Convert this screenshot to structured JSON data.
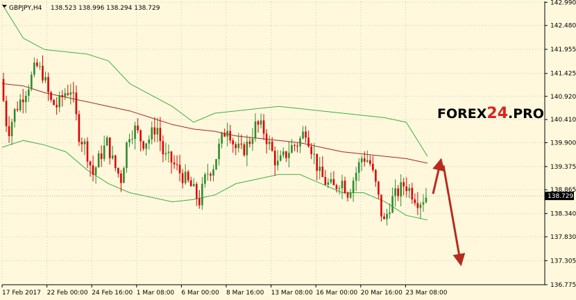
{
  "header": {
    "symbol_label": "GBPJPY,H4",
    "ohlc_text": "138.523 138.996 138.294 138.729"
  },
  "watermark": {
    "part1": "FOREX",
    "part2": "24",
    "part3": ".PRO"
  },
  "current_price_label": "138.729",
  "chart_data": {
    "type": "candlestick",
    "title": "",
    "symbol": "GBPJPY",
    "timeframe": "H4",
    "last_bar": {
      "open": 138.523,
      "high": 138.996,
      "low": 138.294,
      "close": 138.729
    },
    "current_price": 138.729,
    "ylim": [
      136.775,
      143.01
    ],
    "y_ticks": [
      "142.990",
      "142.480",
      "141.955",
      "141.425",
      "140.920",
      "140.410",
      "139.900",
      "139.375",
      "138.865",
      "138.340",
      "137.830",
      "137.305",
      "136.775"
    ],
    "x_tick_labels": [
      "17 Feb 2017",
      "22 Feb 00:00",
      "24 Feb 16:00",
      "1 Mar 08:00",
      "6 Mar 00:00",
      "8 Mar 16:00",
      "13 Mar 08:00",
      "16 Mar 00:00",
      "20 Mar 16:00",
      "23 Mar 08:00"
    ],
    "close_path": [
      141.3,
      140.1,
      140.6,
      140.9,
      141.2,
      141.6,
      141.4,
      140.8,
      140.7,
      141.0,
      141.1,
      140.1,
      139.8,
      139.2,
      139.6,
      139.9,
      139.4,
      139.1,
      140.1,
      140.2,
      139.9,
      140.0,
      140.3,
      139.6,
      139.5,
      139.3,
      139.1,
      138.9,
      138.6,
      139.2,
      139.4,
      139.9,
      140.3,
      139.8,
      139.7,
      139.9,
      140.3,
      140.2,
      139.8,
      139.4,
      139.6,
      139.8,
      139.9,
      140.2,
      139.7,
      139.2,
      139.0,
      138.9,
      139.1,
      138.8,
      139.2,
      139.6,
      139.5,
      138.9,
      138.1,
      138.6,
      138.8,
      139.0,
      138.8,
      138.6,
      138.73
    ],
    "moving_average_path": [
      141.2,
      141.15,
      141.0,
      140.9,
      140.8,
      140.7,
      140.6,
      140.45,
      140.3,
      140.2,
      140.15,
      140.05,
      140.0,
      139.95,
      139.9,
      139.8,
      139.7,
      139.65,
      139.6,
      139.55,
      139.45
    ],
    "bollinger_upper_path": [
      142.95,
      142.2,
      141.95,
      141.9,
      141.85,
      141.7,
      141.2,
      140.95,
      140.7,
      140.35,
      140.55,
      140.6,
      140.65,
      140.7,
      140.65,
      140.6,
      140.55,
      140.5,
      140.45,
      140.35,
      139.6
    ],
    "bollinger_lower_path": [
      139.8,
      139.95,
      139.85,
      139.7,
      139.3,
      139.0,
      138.8,
      138.7,
      138.6,
      138.65,
      138.75,
      139.0,
      139.1,
      139.2,
      139.2,
      139.0,
      138.8,
      138.8,
      138.6,
      138.3,
      138.2
    ],
    "colors": {
      "background": "#fff8dc",
      "bull_candle": "#2e8b2e",
      "bear_candle": "#e00000",
      "moving_average": "#b02020",
      "bollinger_bands": "#3cb043",
      "forecast_arrows": "#b72a1f",
      "grid": "#c8c8c8"
    },
    "forecast_arrows": [
      {
        "direction": "up",
        "from_price": 138.7,
        "to_price": 139.4
      },
      {
        "direction": "down",
        "from_price": 139.4,
        "to_price": 137.5
      }
    ],
    "grid": true
  }
}
